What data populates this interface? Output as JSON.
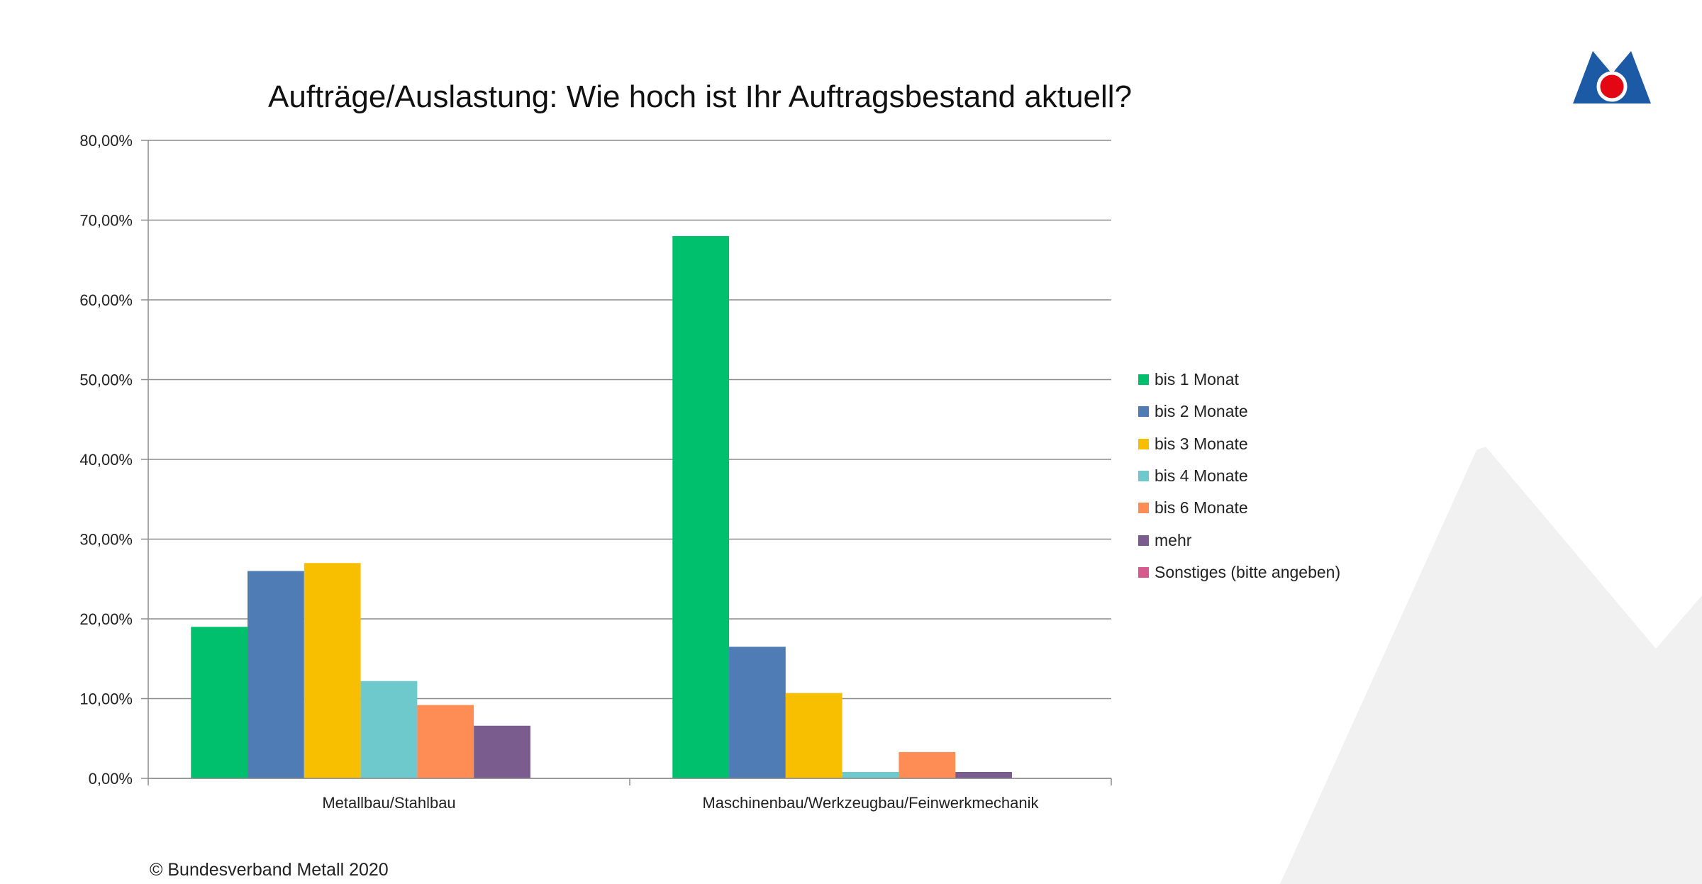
{
  "page": {
    "copyright": "© Bundesverband Metall 2020"
  },
  "colors": {
    "background_shape": "#f1f1f2",
    "logo_blue": "#1d5aa6",
    "logo_red": "#e30613",
    "grid": "#8c8c8c",
    "axis": "#8c8c8c"
  },
  "chart_data": {
    "type": "bar",
    "title": "Aufträge/Auslastung: Wie hoch ist Ihr Auftragsbestand aktuell?",
    "xlabel": "",
    "ylabel": "",
    "ylim": [
      0,
      0.8
    ],
    "yticks": [
      0,
      0.1,
      0.2,
      0.3,
      0.4,
      0.5,
      0.6,
      0.7,
      0.8
    ],
    "ytick_labels": [
      "0,00%",
      "10,00%",
      "20,00%",
      "30,00%",
      "40,00%",
      "50,00%",
      "60,00%",
      "70,00%",
      "80,00%"
    ],
    "grid": true,
    "legend_position": "right",
    "categories": [
      "Metallbau/Stahlbau",
      "Maschinenbau/Werkzeugbau/Feinwerkmechanik"
    ],
    "series": [
      {
        "name": "bis 1 Monat",
        "color": "#00c06e",
        "values": [
          0.19,
          0.68
        ]
      },
      {
        "name": "bis 2 Monate",
        "color": "#4f7cb4",
        "values": [
          0.26,
          0.165
        ]
      },
      {
        "name": "bis 3 Monate",
        "color": "#f8be00",
        "values": [
          0.27,
          0.107
        ]
      },
      {
        "name": "bis 4 Monate",
        "color": "#6dc9cc",
        "values": [
          0.122,
          0.008
        ]
      },
      {
        "name": "bis 6 Monate",
        "color": "#fd8d54",
        "values": [
          0.092,
          0.033
        ]
      },
      {
        "name": "mehr",
        "color": "#7a5c8e",
        "values": [
          0.066,
          0.008
        ]
      },
      {
        "name": "Sonstiges (bitte angeben)",
        "color": "#d75a8e",
        "values": [
          0,
          0
        ]
      }
    ]
  }
}
